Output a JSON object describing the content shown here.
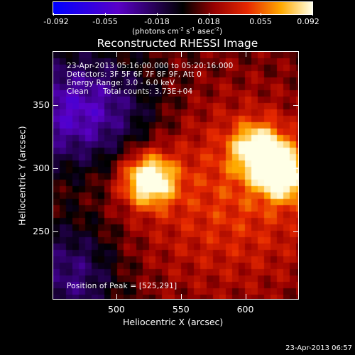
{
  "colorbar": {
    "ticks": [
      "-0.092",
      "-0.055",
      "-0.018",
      "0.018",
      "0.055",
      "0.092"
    ],
    "units_main": "(photons cm",
    "units_exp1": "-2",
    "units_mid": " s",
    "units_exp2": "-1",
    "units_mid2": " asec",
    "units_exp3": "-2",
    "units_end": ")",
    "min": -0.092,
    "max": 0.092
  },
  "chart_data": {
    "type": "heatmap",
    "title": "Reconstructed RHESSI Image",
    "xlabel": "Heliocentric X (arcsec)",
    "ylabel": "Heliocentric Y (arcsec)",
    "xlim": [
      451,
      641
    ],
    "ylim": [
      197,
      392
    ],
    "x_ticks": [
      500,
      550,
      600
    ],
    "y_ticks": [
      250,
      300,
      350
    ],
    "peak": [
      525,
      291
    ],
    "sources": [
      {
        "x": 525,
        "y": 291,
        "amplitude": 0.09
      },
      {
        "x": 610,
        "y": 315,
        "amplitude": 0.075
      },
      {
        "x": 630,
        "y": 295,
        "amplitude": 0.08
      }
    ]
  },
  "annotations": {
    "time_range": "23-Apr-2013 05:16:00.000 to 05:20:16.000",
    "detectors": "Detectors: 3F 5F 6F 7F 8F 9F, Att 0",
    "energy": "Energy Range: 3.0 - 6.0 keV",
    "clean": "Clean",
    "total_counts": "Total counts: 3.73E+04",
    "peak_position": "Position of Peak = [525,291]"
  },
  "footer_timestamp": "23-Apr-2013 06:57"
}
